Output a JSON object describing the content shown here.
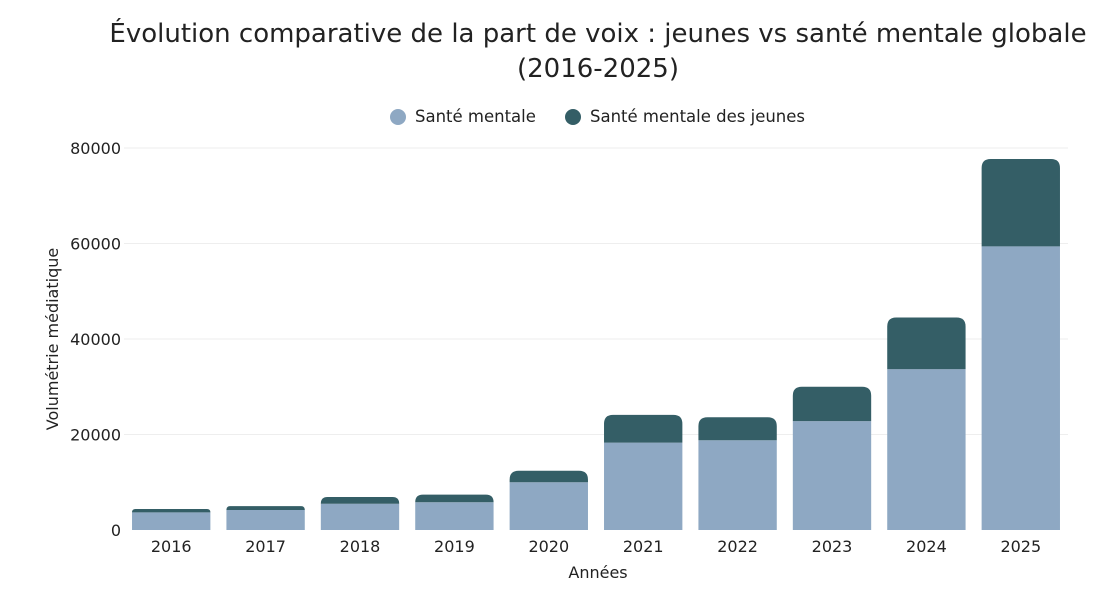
{
  "chart_data": {
    "type": "bar",
    "stacked": true,
    "title_lines": [
      "Évolution comparative de la part de voix : jeunes vs santé mentale globale",
      "(2016-2025)"
    ],
    "xlabel": "Années",
    "ylabel": "Volumétrie médiatique",
    "categories": [
      "2016",
      "2017",
      "2018",
      "2019",
      "2020",
      "2021",
      "2022",
      "2023",
      "2024",
      "2025"
    ],
    "y_ticks": [
      0,
      20000,
      40000,
      60000,
      80000
    ],
    "y_tick_labels": [
      "0",
      "20000",
      "40000",
      "60000",
      "80000"
    ],
    "ylim": [
      0,
      80000
    ],
    "grid": true,
    "legend_position": "top-center",
    "series": [
      {
        "name": "Santé mentale",
        "color": "#8ea8c3",
        "values": [
          3700,
          4200,
          5500,
          5800,
          10000,
          18300,
          18800,
          22800,
          33700,
          59400
        ]
      },
      {
        "name": "Santé mentale des jeunes",
        "color": "#345e66",
        "values": [
          700,
          800,
          1400,
          1600,
          2400,
          5800,
          4800,
          7200,
          10800,
          18300
        ]
      }
    ]
  }
}
